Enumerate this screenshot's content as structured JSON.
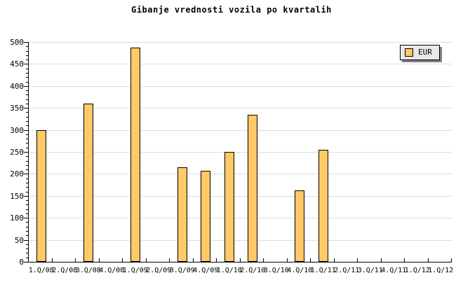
{
  "title": "Gibanje vrednosti vozila po kvartalih",
  "legend": {
    "label": "EUR"
  },
  "colors": {
    "bar_fill": "#FFC966",
    "bar_border": "#000000",
    "gridline": "#DDDDDD",
    "axis": "#000000",
    "legend_bg": "#E8E8E8",
    "legend_shadow": "#808080",
    "background": "#FFFFFF"
  },
  "chart_data": {
    "type": "bar",
    "title": "Gibanje vrednosti vozila po kvartalih",
    "categories": [
      "1.Q/08",
      "2.Q/08",
      "3.Q/08",
      "4.Q/08",
      "1.Q/09",
      "2.Q/09",
      "3.Q/09",
      "4.Q/09",
      "1.Q/10",
      "2.Q/10",
      "3.Q/10",
      "4.Q/10",
      "1.Q/11",
      "2.Q/11",
      "3.Q/11",
      "4.Q/11",
      "1.Q/12",
      "1.Q/12"
    ],
    "series": [
      {
        "name": "EUR",
        "values": [
          300,
          0,
          360,
          0,
          488,
          0,
          215,
          207,
          250,
          335,
          0,
          163,
          255,
          0,
          0,
          0,
          0,
          0
        ]
      }
    ],
    "xlabel": "",
    "ylabel": "",
    "ylim": [
      0,
      500
    ],
    "ytick_major": 50,
    "ytick_minor": 10,
    "grid": true,
    "legend_position": "top-right"
  }
}
